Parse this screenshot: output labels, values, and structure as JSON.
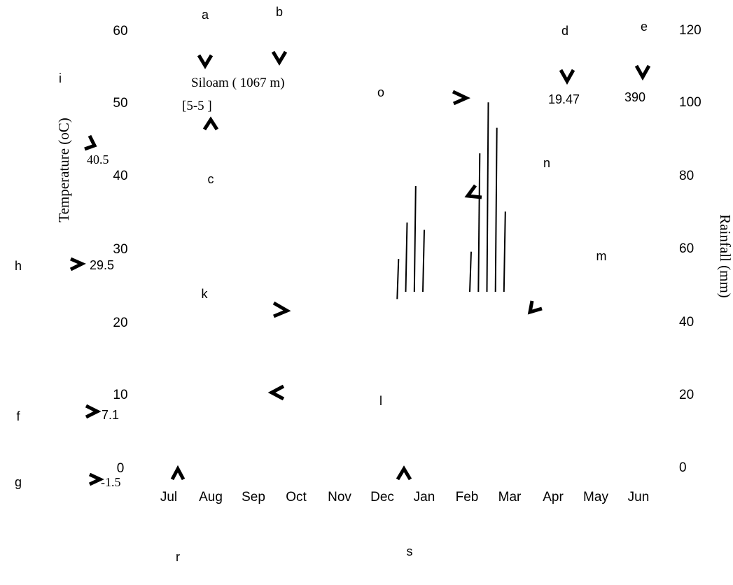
{
  "chart_data": {
    "type": "bar",
    "left_axis": {
      "label": "Temperature (oC)",
      "range": [
        0,
        60
      ],
      "ticks": [
        "0",
        "10",
        "20",
        "30",
        "40",
        "50",
        "60"
      ]
    },
    "right_axis": {
      "label": "Rainfall (mm)",
      "range": [
        0,
        120
      ],
      "ticks": [
        "0",
        "20",
        "40",
        "60",
        "80",
        "100",
        "120"
      ]
    },
    "x_categories": [
      "Jul",
      "Aug",
      "Sep",
      "Oct",
      "Nov",
      "Dec",
      "Jan",
      "Feb",
      "Mar",
      "Apr",
      "May",
      "Jun"
    ],
    "station": {
      "name": "Siloam ( 1067 m)",
      "code": "[5-5 ]"
    },
    "annotations": {
      "max_temp_value": "40.5",
      "mean_temp_value": "19.47",
      "annual_rainfall_value": "390",
      "mean_max_coldest_value": "29.5",
      "mean_min_coldest_value": "7.1",
      "min_temp_value": "-1.5"
    },
    "letters": [
      "a",
      "b",
      "c",
      "d",
      "e",
      "f",
      "g",
      "h",
      "i",
      "k",
      "l",
      "m",
      "n",
      "o",
      "r",
      "s"
    ],
    "rainfall_bars": [
      {
        "month_pos": 5.35,
        "base": 46,
        "top": 57
      },
      {
        "month_pos": 5.55,
        "base": 48,
        "top": 67
      },
      {
        "month_pos": 5.75,
        "base": 48,
        "top": 77
      },
      {
        "month_pos": 5.95,
        "base": 48,
        "top": 65
      },
      {
        "month_pos": 7.05,
        "base": 48,
        "top": 59
      },
      {
        "month_pos": 7.25,
        "base": 48,
        "top": 86
      },
      {
        "month_pos": 7.45,
        "base": 48,
        "top": 100
      },
      {
        "month_pos": 7.65,
        "base": 48,
        "top": 93
      },
      {
        "month_pos": 7.85,
        "base": 48,
        "top": 70
      }
    ]
  }
}
